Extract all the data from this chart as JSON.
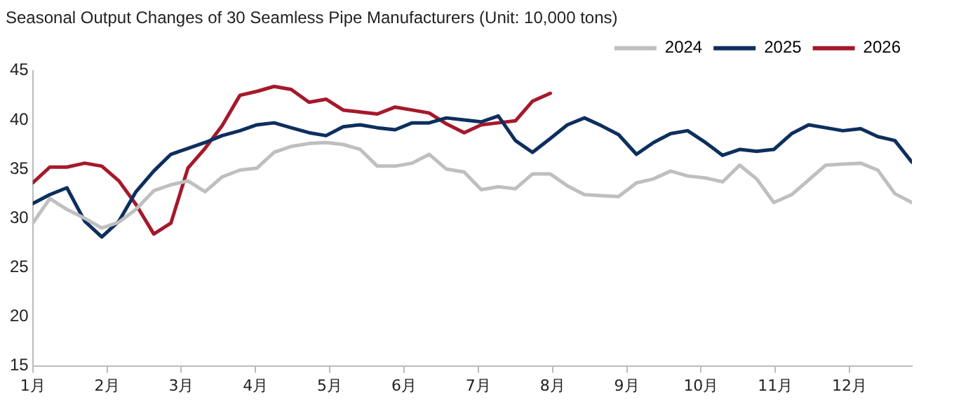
{
  "chart_data": {
    "type": "line",
    "title": "Seasonal Output Changes of 30 Seamless Pipe Manufacturers (Unit: 10,000 tons)",
    "x": [
      1.0,
      1.23,
      1.46,
      1.7,
      1.93,
      2.16,
      2.39,
      2.63,
      2.86,
      3.09,
      3.32,
      3.55,
      3.79,
      4.02,
      4.25,
      4.48,
      4.72,
      4.95,
      5.18,
      5.41,
      5.64,
      5.88,
      6.11,
      6.34,
      6.57,
      6.81,
      7.04,
      7.27,
      7.5,
      7.73,
      7.97,
      8.2,
      8.43,
      8.66,
      8.89,
      9.13,
      9.36,
      9.59,
      9.82,
      10.06,
      10.29,
      10.52,
      10.75,
      10.98,
      11.22,
      11.45,
      11.68,
      11.91,
      12.15,
      12.38,
      12.61,
      12.84
    ],
    "series": [
      {
        "name": "2024",
        "color": "#bfbfbf",
        "values": [
          29.5,
          32.0,
          30.9,
          30.0,
          29.0,
          29.6,
          30.9,
          32.8,
          33.4,
          33.8,
          32.7,
          34.2,
          34.9,
          35.1,
          36.7,
          37.3,
          37.6,
          37.7,
          37.5,
          37.0,
          35.3,
          35.3,
          35.6,
          36.5,
          35.0,
          34.7,
          32.9,
          33.2,
          33.0,
          34.5,
          34.5,
          33.3,
          32.4,
          32.3,
          32.2,
          33.6,
          34.0,
          34.8,
          34.3,
          34.1,
          33.7,
          35.4,
          34.0,
          31.6,
          32.4,
          33.9,
          35.4,
          35.5,
          35.6,
          34.9,
          32.5,
          31.6
        ]
      },
      {
        "name": "2025",
        "color": "#0d2f5e",
        "values": [
          31.5,
          32.4,
          33.1,
          29.7,
          28.1,
          29.7,
          32.7,
          34.8,
          36.5,
          37.1,
          37.7,
          38.4,
          38.9,
          39.5,
          39.7,
          39.2,
          38.7,
          38.4,
          39.3,
          39.5,
          39.2,
          39.0,
          39.7,
          39.7,
          40.2,
          40.0,
          39.8,
          40.4,
          37.9,
          36.7,
          38.1,
          39.5,
          40.2,
          39.4,
          38.5,
          36.5,
          37.7,
          38.6,
          38.9,
          37.7,
          36.4,
          37.0,
          36.8,
          37.0,
          38.6,
          39.5,
          39.2,
          38.9,
          39.1,
          38.3,
          37.9,
          35.7
        ]
      },
      {
        "name": "2026",
        "color": "#a5192b",
        "values": [
          33.6,
          35.2,
          35.2,
          35.6,
          35.3,
          33.8,
          31.4,
          28.4,
          29.5,
          35.1,
          37.1,
          39.4,
          42.5,
          42.9,
          43.4,
          43.1,
          41.8,
          42.1,
          41.0,
          40.8,
          40.6,
          41.3,
          41.0,
          40.7,
          39.6,
          38.7,
          39.5,
          39.7,
          39.9,
          41.9,
          42.7,
          null,
          null,
          null,
          null,
          null,
          null,
          null,
          null,
          null,
          null,
          null,
          null,
          null,
          null,
          null,
          null,
          null,
          null,
          null,
          null,
          null
        ]
      }
    ],
    "xlim": [
      1,
      12.84
    ],
    "xticks": [
      {
        "value": 1,
        "label": "1月"
      },
      {
        "value": 2,
        "label": "2月"
      },
      {
        "value": 3,
        "label": "3月"
      },
      {
        "value": 4,
        "label": "4月"
      },
      {
        "value": 5,
        "label": "5月"
      },
      {
        "value": 6,
        "label": "6月"
      },
      {
        "value": 7,
        "label": "7月"
      },
      {
        "value": 8,
        "label": "8月"
      },
      {
        "value": 9,
        "label": "9月"
      },
      {
        "value": 10,
        "label": "10月"
      },
      {
        "value": 11,
        "label": "11月"
      },
      {
        "value": 12,
        "label": "12月"
      }
    ],
    "ylim": [
      15,
      45
    ],
    "yticks": [
      15,
      20,
      25,
      30,
      35,
      40,
      45
    ],
    "grid": false,
    "legend": "top right",
    "marker": "none",
    "line_style": "solid"
  }
}
